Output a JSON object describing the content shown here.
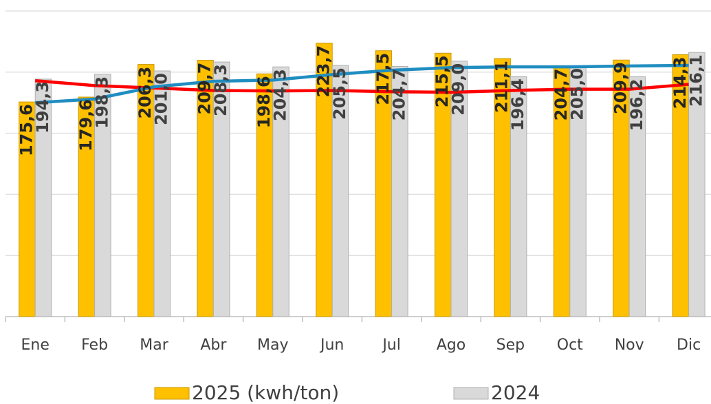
{
  "chart_data": {
    "type": "bar",
    "categories": [
      "Ene",
      "Feb",
      "Mar",
      "Abr",
      "May",
      "Jun",
      "Jul",
      "Ago",
      "Sep",
      "Oct",
      "Nov",
      "Dic"
    ],
    "series": [
      {
        "name": "2025 (kwh/ton)",
        "type": "bar",
        "color": "#FFC000",
        "values": [
          175.6,
          179.6,
          206.3,
          209.7,
          198.6,
          223.7,
          217.5,
          215.5,
          211.1,
          204.7,
          209.9,
          214.3
        ],
        "value_labels": [
          "175,6",
          "179,6",
          "206,3",
          "209,7",
          "198,6",
          "223,7",
          "217,5",
          "215,5",
          "211,1",
          "204,7",
          "209,9",
          "214,3"
        ]
      },
      {
        "name": "2024",
        "type": "bar",
        "color": "#D9D9D9",
        "values": [
          194.3,
          198.3,
          201.0,
          208.3,
          204.3,
          205.5,
          204.7,
          209.0,
          196.4,
          205.0,
          196.2,
          216.1
        ],
        "value_labels": [
          "194,3",
          "198,3",
          "201,0",
          "208,3",
          "204,3",
          "205,5",
          "204,7",
          "209,0",
          "196,4",
          "205,0",
          "196,2",
          "216,1"
        ]
      },
      {
        "type": "line",
        "color": "#FF0000",
        "values": [
          193,
          189,
          187,
          185,
          184.6,
          185,
          184,
          183.5,
          185,
          186,
          186,
          190
        ]
      },
      {
        "type": "line",
        "color": "#1F8DC0",
        "values": [
          175,
          178,
          188,
          192.5,
          193.5,
          198,
          201.5,
          203.7,
          204.3,
          204.3,
          205,
          205.5
        ]
      }
    ],
    "ylim": [
      0,
      250
    ],
    "yticks": [
      0,
      50,
      100,
      150,
      200,
      250
    ],
    "grid": true
  }
}
